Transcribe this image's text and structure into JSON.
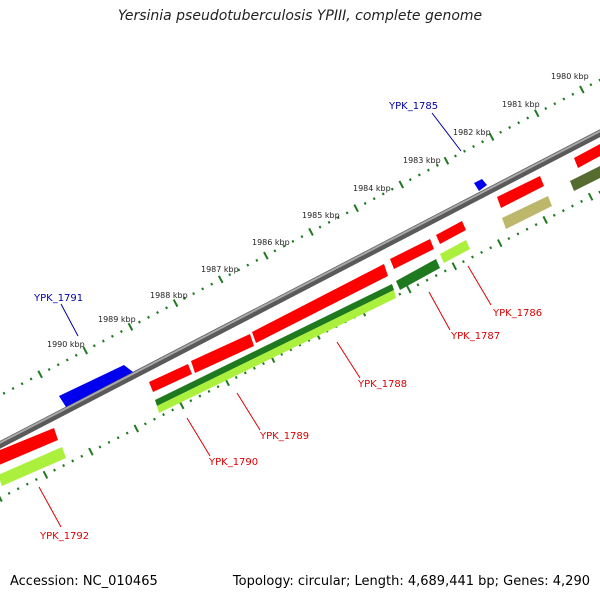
{
  "title": "Yersinia pseudotuberculosis YPIII, complete genome",
  "footer": {
    "accession": "Accession: NC_010465",
    "summary": "Topology: circular; Length: 4,689,441 bp; Genes: 4,290"
  },
  "colors": {
    "backbone": "#8a8a8a",
    "scale_dots": "#1f7a1f",
    "forward_gene": "#ff0000",
    "reverse_gene_dark": "#1f7a1f",
    "reverse_gene_light": "#aaf03c",
    "blue_feature": "#0000ff",
    "olive_feature": "#6b8e23",
    "khaki_feature": "#bdb76b",
    "label_red": "#dd0000",
    "label_blue": "#0000aa"
  },
  "scale_labels": [
    "1980 kbp",
    "1981 kbp",
    "1982 kbp",
    "1983 kbp",
    "1984 kbp",
    "1985 kbp",
    "1986 kbp",
    "1987 kbp",
    "1988 kbp",
    "1989 kbp",
    "1990 kbp"
  ],
  "gene_labels": {
    "ypk_1785": "YPK_1785",
    "ypk_1786": "YPK_1786",
    "ypk_1787": "YPK_1787",
    "ypk_1788": "YPK_1788",
    "ypk_1789": "YPK_1789",
    "ypk_1790": "YPK_1790",
    "ypk_1791": "YPK_1791",
    "ypk_1792": "YPK_1792"
  }
}
